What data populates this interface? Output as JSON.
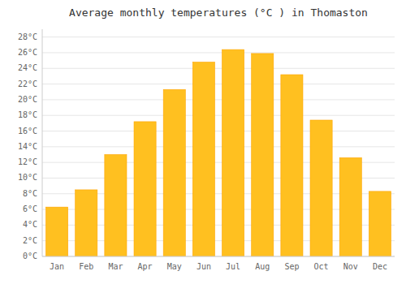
{
  "chart_data": {
    "type": "bar",
    "title": "Average monthly temperatures (°C ) in Thomaston",
    "categories": [
      "Jan",
      "Feb",
      "Mar",
      "Apr",
      "May",
      "Jun",
      "Jul",
      "Aug",
      "Sep",
      "Oct",
      "Nov",
      "Dec"
    ],
    "values": [
      6.3,
      8.5,
      13.0,
      17.2,
      21.3,
      24.8,
      26.4,
      25.9,
      23.2,
      17.4,
      12.6,
      8.3
    ],
    "color": "#FFC020",
    "ylim": [
      0,
      29
    ],
    "yticks": [
      {
        "value": 0,
        "label": "0°C"
      },
      {
        "value": 2,
        "label": "2°C"
      },
      {
        "value": 4,
        "label": "4°C"
      },
      {
        "value": 6,
        "label": "6°C"
      },
      {
        "value": 8,
        "label": "8°C"
      },
      {
        "value": 10,
        "label": "10°C"
      },
      {
        "value": 12,
        "label": "12°C"
      },
      {
        "value": 14,
        "label": "14°C"
      },
      {
        "value": 16,
        "label": "16°C"
      },
      {
        "value": 18,
        "label": "18°C"
      },
      {
        "value": 20,
        "label": "20°C"
      },
      {
        "value": 22,
        "label": "22°C"
      },
      {
        "value": 24,
        "label": "24°C"
      },
      {
        "value": 26,
        "label": "26°C"
      },
      {
        "value": 28,
        "label": "28°C"
      }
    ],
    "grid": true
  }
}
